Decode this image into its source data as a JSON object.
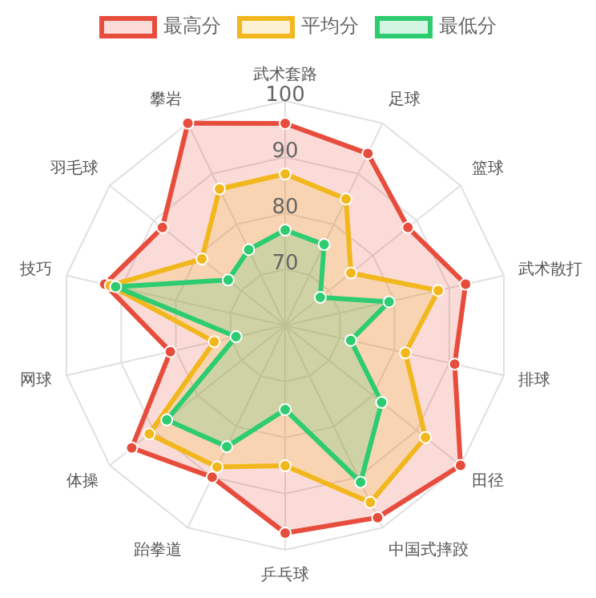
{
  "chart_data": {
    "type": "radar",
    "categories": [
      "武术套路",
      "足球",
      "篮球",
      "武术散打",
      "排球",
      "田径",
      "中国式摔跤",
      "乒乓球",
      "跆拳道",
      "体操",
      "网球",
      "技巧",
      "羽毛球",
      "攀岩"
    ],
    "series": [
      {
        "name": "最高分",
        "color": "#e74c3c",
        "values": [
          96,
          94,
          88,
          93,
          91,
          100,
          98,
          97,
          90,
          95,
          81,
          93,
          88,
          100
        ]
      },
      {
        "name": "平均分",
        "color": "#f1b71c",
        "values": [
          87,
          85,
          75,
          88,
          82,
          92,
          95,
          85,
          88,
          91,
          73,
          92,
          79,
          87
        ]
      },
      {
        "name": "最低分",
        "color": "#2ecc71",
        "values": [
          77,
          76,
          68,
          79,
          72,
          82,
          91,
          75,
          84,
          87,
          69,
          91,
          73,
          75
        ]
      }
    ],
    "ylim": [
      60,
      100
    ],
    "yticks": [
      70,
      80,
      90,
      100
    ],
    "legend": "top",
    "marker": "circle"
  }
}
